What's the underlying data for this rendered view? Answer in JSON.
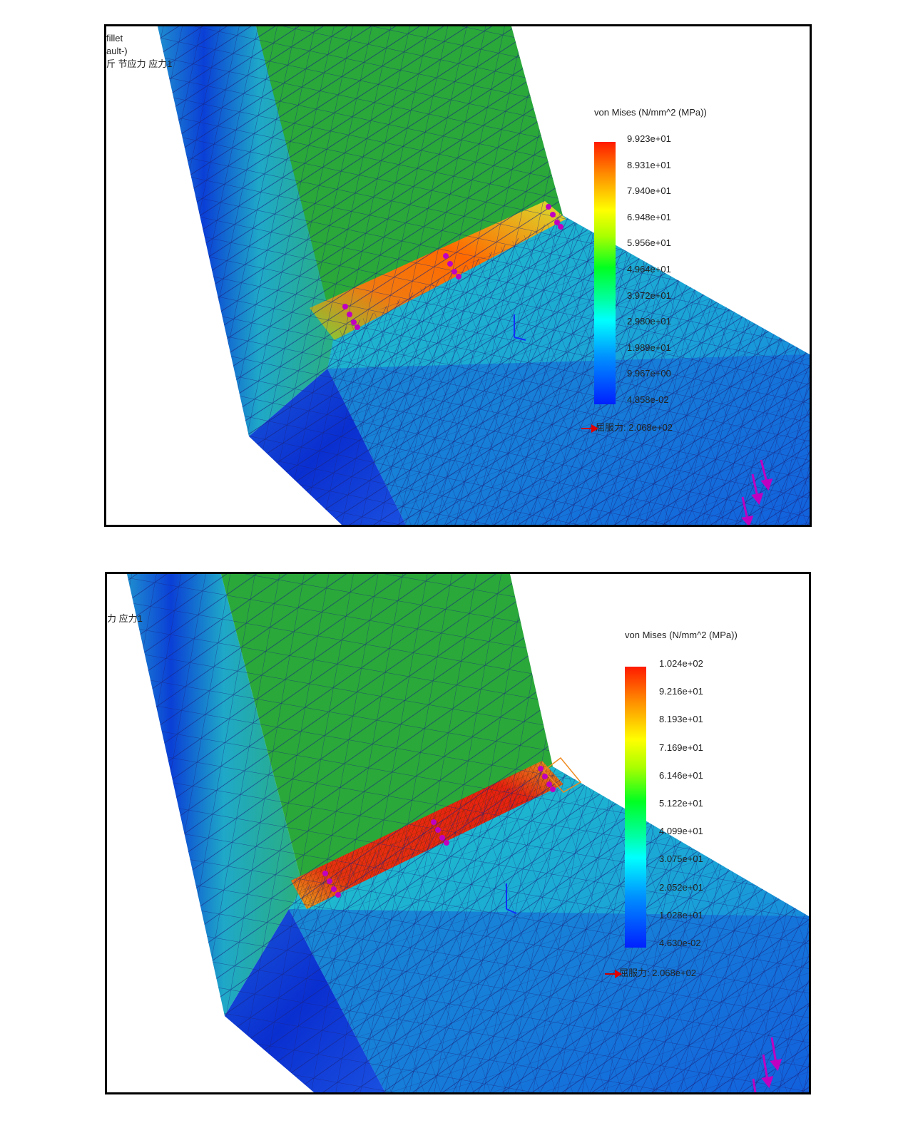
{
  "top": {
    "corner_lines": [
      "fillet",
      "ault-)",
      "斤 节应力 应力1"
    ],
    "legend": {
      "title": "von Mises (N/mm^2 (MPa))",
      "ticks": [
        "9.923e+01",
        "8.931e+01",
        "7.940e+01",
        "6.948e+01",
        "5.956e+01",
        "4.964e+01",
        "3.972e+01",
        "2.980e+01",
        "1.989e+01",
        "9.967e+00",
        "4.858e-02"
      ],
      "yield_label": "屈服力: 2.068e+02"
    }
  },
  "bottom": {
    "corner_lines": [
      "力 应力1"
    ],
    "legend": {
      "title": "von Mises (N/mm^2 (MPa))",
      "ticks": [
        "1.024e+02",
        "9.216e+01",
        "8.193e+01",
        "7.169e+01",
        "6.146e+01",
        "5.122e+01",
        "4.099e+01",
        "3.075e+01",
        "2.052e+01",
        "1.028e+01",
        "4.630e-02"
      ],
      "yield_label": "屈服力: 2.068e+02"
    }
  },
  "colors": {
    "high": "#ff1a00",
    "mid": "#22b14c",
    "low": "#0020ff",
    "mesh": "#1a237e",
    "fixture": "#c000c0"
  }
}
